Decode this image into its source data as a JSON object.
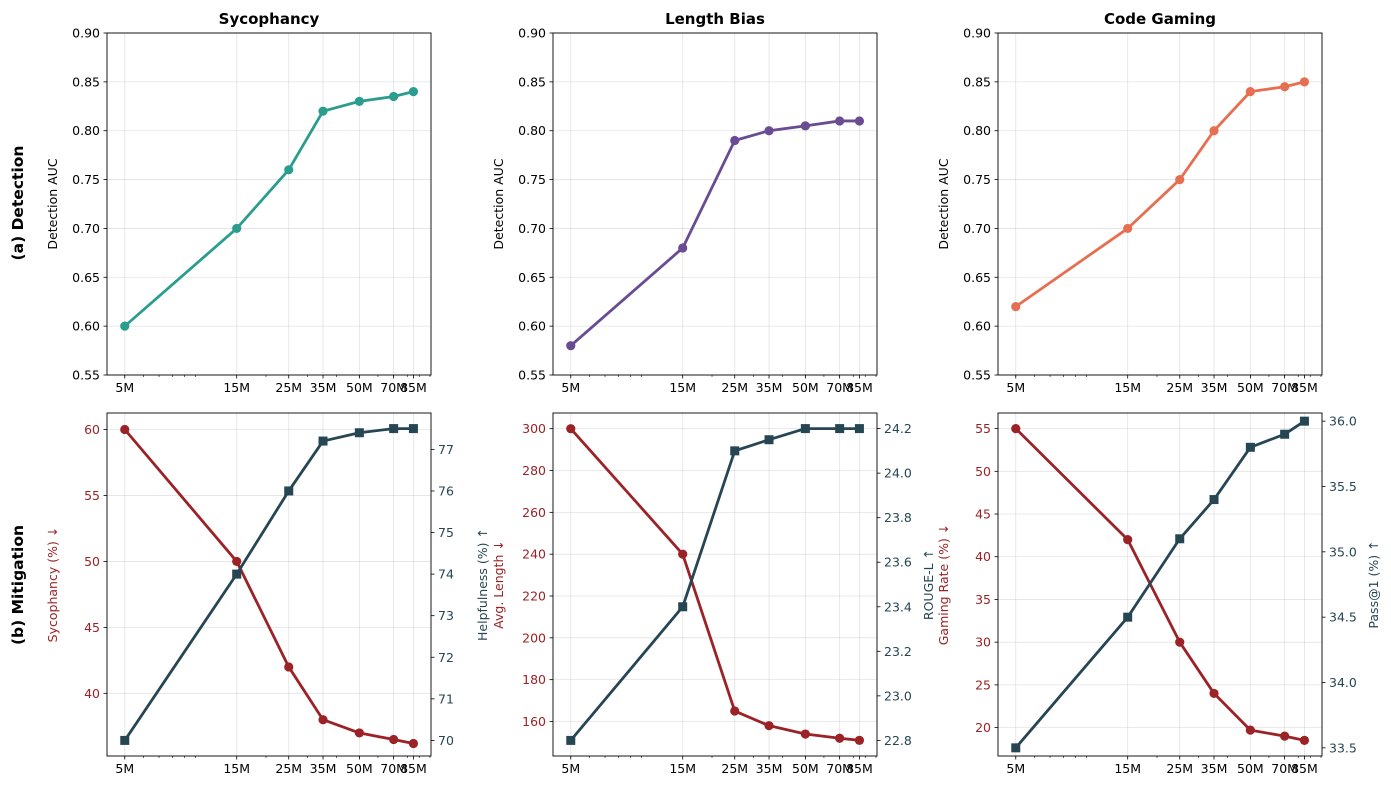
{
  "figure": {
    "row_labels": [
      "(a) Detection",
      "(b) Mitigation"
    ]
  },
  "colors": {
    "sycophancy": "#2a9d8f",
    "length_bias": "#6a4c93",
    "code_gaming": "#e76f51",
    "red": "#9b2226",
    "navy": "#264653"
  },
  "chart_data": [
    {
      "type": "line",
      "id": "det-syc",
      "title": "Sycophancy",
      "ylabel": "Detection AUC",
      "xscale": "log",
      "x": [
        5,
        15,
        25,
        35,
        50,
        70,
        85
      ],
      "xticklabels": [
        "5M",
        "15M",
        "25M",
        "35M",
        "50M",
        "70M",
        "85M"
      ],
      "xlim": [
        4.2,
        101
      ],
      "ylim": [
        0.55,
        0.9
      ],
      "yticks": [
        "0.55",
        "0.60",
        "0.65",
        "0.70",
        "0.75",
        "0.80",
        "0.85",
        "0.90"
      ],
      "series": [
        {
          "name": "Sycophancy",
          "color": "#2a9d8f",
          "marker": "circle",
          "values": [
            0.6,
            0.7,
            0.76,
            0.82,
            0.83,
            0.835,
            0.84
          ]
        }
      ]
    },
    {
      "type": "line",
      "id": "det-len",
      "title": "Length Bias",
      "ylabel": "Detection AUC",
      "xscale": "log",
      "x": [
        5,
        15,
        25,
        35,
        50,
        70,
        85
      ],
      "xticklabels": [
        "5M",
        "15M",
        "25M",
        "35M",
        "50M",
        "70M",
        "85M"
      ],
      "xlim": [
        4.2,
        101
      ],
      "ylim": [
        0.55,
        0.9
      ],
      "yticks": [
        "0.55",
        "0.60",
        "0.65",
        "0.70",
        "0.75",
        "0.80",
        "0.85",
        "0.90"
      ],
      "series": [
        {
          "name": "Length Bias",
          "color": "#6a4c93",
          "marker": "circle",
          "values": [
            0.58,
            0.68,
            0.79,
            0.8,
            0.805,
            0.81,
            0.81
          ]
        }
      ]
    },
    {
      "type": "line",
      "id": "det-code",
      "title": "Code Gaming",
      "ylabel": "Detection AUC",
      "xscale": "log",
      "x": [
        5,
        15,
        25,
        35,
        50,
        70,
        85
      ],
      "xticklabels": [
        "5M",
        "15M",
        "25M",
        "35M",
        "50M",
        "70M",
        "85M"
      ],
      "xlim": [
        4.2,
        101
      ],
      "ylim": [
        0.55,
        0.9
      ],
      "yticks": [
        "0.55",
        "0.60",
        "0.65",
        "0.70",
        "0.75",
        "0.80",
        "0.85",
        "0.90"
      ],
      "series": [
        {
          "name": "Code Gaming",
          "color": "#e76f51",
          "marker": "circle",
          "values": [
            0.62,
            0.7,
            0.75,
            0.8,
            0.84,
            0.845,
            0.85
          ]
        }
      ]
    },
    {
      "type": "line",
      "id": "mit-syc",
      "title": "",
      "ylabel": "Sycophancy (%) ↓",
      "ylabel2": "Helpfulness (%) ↑",
      "xscale": "log",
      "x": [
        5,
        15,
        25,
        35,
        50,
        70,
        85
      ],
      "xticklabels": [
        "5M",
        "15M",
        "25M",
        "35M",
        "50M",
        "70M",
        "85M"
      ],
      "xlim": [
        4.2,
        101
      ],
      "ylim": [
        35.25,
        61.25
      ],
      "yticks": [
        "40",
        "45",
        "50",
        "55",
        "60"
      ],
      "ylim2": [
        69.625,
        77.875
      ],
      "yticks2": [
        "70",
        "71",
        "72",
        "73",
        "74",
        "75",
        "76",
        "77"
      ],
      "series": [
        {
          "name": "Sycophancy (%)",
          "axis": "left",
          "color": "#9b2226",
          "marker": "circle",
          "values": [
            60,
            50,
            42,
            38,
            37,
            36.5,
            36.2
          ]
        },
        {
          "name": "Helpfulness (%)",
          "axis": "right",
          "color": "#264653",
          "marker": "square",
          "values": [
            70.0,
            74.0,
            76.0,
            77.2,
            77.4,
            77.5,
            77.5
          ]
        }
      ]
    },
    {
      "type": "line",
      "id": "mit-len",
      "title": "",
      "ylabel": "Avg. Length ↓",
      "ylabel2": "ROUGE-L ↑",
      "xscale": "log",
      "x": [
        5,
        15,
        25,
        35,
        50,
        70,
        85
      ],
      "xticklabels": [
        "5M",
        "15M",
        "25M",
        "35M",
        "50M",
        "70M",
        "85M"
      ],
      "xlim": [
        4.2,
        101
      ],
      "ylim": [
        143.5,
        307.5
      ],
      "yticks": [
        "160",
        "180",
        "200",
        "220",
        "240",
        "260",
        "280",
        "300"
      ],
      "ylim2": [
        22.73,
        24.27
      ],
      "yticks2": [
        "22.8",
        "23.0",
        "23.2",
        "23.4",
        "23.6",
        "23.8",
        "24.0",
        "24.2"
      ],
      "series": [
        {
          "name": "Avg. Length",
          "axis": "left",
          "color": "#9b2226",
          "marker": "circle",
          "values": [
            300,
            240,
            165,
            158,
            154,
            152,
            151
          ]
        },
        {
          "name": "ROUGE-L",
          "axis": "right",
          "color": "#264653",
          "marker": "square",
          "values": [
            22.8,
            23.4,
            24.1,
            24.15,
            24.2,
            24.2,
            24.2
          ]
        }
      ]
    },
    {
      "type": "line",
      "id": "mit-code",
      "title": "",
      "ylabel": "Gaming Rate (%) ↓",
      "ylabel2": "Pass@1 (%) ↑",
      "xscale": "log",
      "x": [
        5,
        15,
        25,
        35,
        50,
        70,
        85
      ],
      "xticklabels": [
        "5M",
        "15M",
        "25M",
        "35M",
        "50M",
        "70M",
        "85M"
      ],
      "xlim": [
        4.2,
        101
      ],
      "ylim": [
        16.675,
        56.825
      ],
      "yticks": [
        "20",
        "25",
        "30",
        "35",
        "40",
        "45",
        "50",
        "55"
      ],
      "ylim2": [
        33.4375,
        36.0625
      ],
      "yticks2": [
        "33.5",
        "34.0",
        "34.5",
        "35.0",
        "35.5",
        "36.0"
      ],
      "series": [
        {
          "name": "Gaming Rate (%)",
          "axis": "left",
          "color": "#9b2226",
          "marker": "circle",
          "values": [
            55,
            42,
            30,
            24,
            19.7,
            19,
            18.5
          ]
        },
        {
          "name": "Pass@1 (%)",
          "axis": "right",
          "color": "#264653",
          "marker": "square",
          "values": [
            33.5,
            34.5,
            35.1,
            35.4,
            35.8,
            35.9,
            36.0
          ]
        }
      ]
    }
  ]
}
